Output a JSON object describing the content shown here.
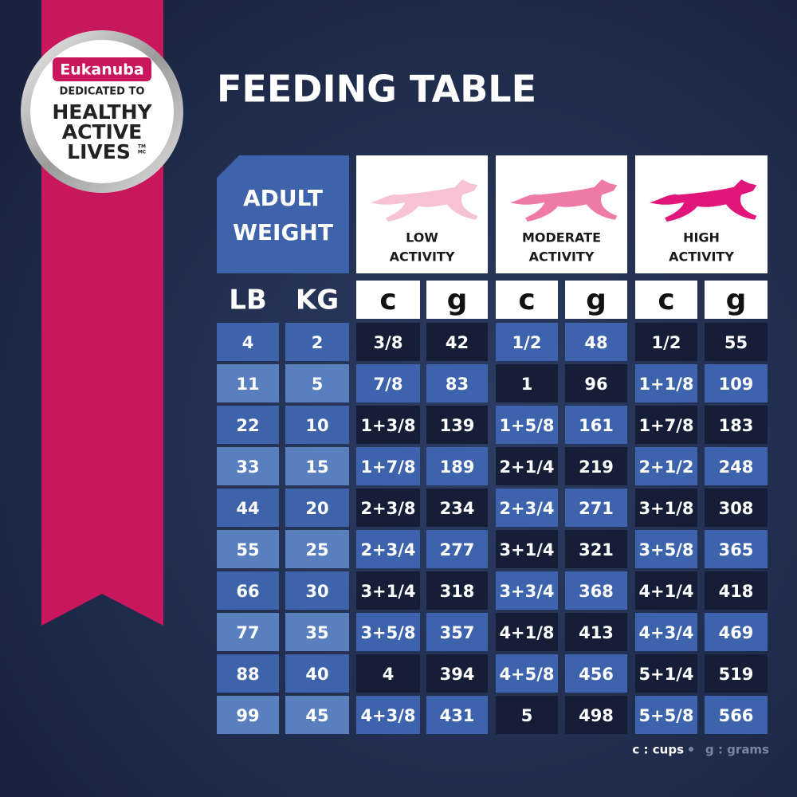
{
  "badge": {
    "brand": "Eukanuba",
    "line1": "DEDICATED TO",
    "line2": "HEALTHY",
    "line3": "ACTIVE",
    "line4": "LIVES",
    "tm": "TM",
    "mc": "MC"
  },
  "title": "FEEDING TABLE",
  "table": {
    "weight_header": [
      "ADULT",
      "WEIGHT"
    ],
    "activities": [
      [
        "LOW",
        "ACTIVITY"
      ],
      [
        "MODERATE",
        "ACTIVITY"
      ],
      [
        "HIGH",
        "ACTIVITY"
      ]
    ],
    "units": [
      "LB",
      "KG",
      "c",
      "g",
      "c",
      "g",
      "c",
      "g"
    ],
    "rows": [
      [
        "4",
        "2",
        "3/8",
        "42",
        "1/2",
        "48",
        "1/2",
        "55"
      ],
      [
        "11",
        "5",
        "7/8",
        "83",
        "1",
        "96",
        "1+1/8",
        "109"
      ],
      [
        "22",
        "10",
        "1+3/8",
        "139",
        "1+5/8",
        "161",
        "1+7/8",
        "183"
      ],
      [
        "33",
        "15",
        "1+7/8",
        "189",
        "2+1/4",
        "219",
        "2+1/2",
        "248"
      ],
      [
        "44",
        "20",
        "2+3/8",
        "234",
        "2+3/4",
        "271",
        "3+1/8",
        "308"
      ],
      [
        "55",
        "25",
        "2+3/4",
        "277",
        "3+1/4",
        "321",
        "3+5/8",
        "365"
      ],
      [
        "66",
        "30",
        "3+1/4",
        "318",
        "3+3/4",
        "368",
        "4+1/4",
        "418"
      ],
      [
        "77",
        "35",
        "3+5/8",
        "357",
        "4+1/8",
        "413",
        "4+3/4",
        "469"
      ],
      [
        "88",
        "40",
        "4",
        "394",
        "4+5/8",
        "456",
        "5+1/4",
        "519"
      ],
      [
        "99",
        "45",
        "4+3/8",
        "431",
        "5",
        "498",
        "5+5/8",
        "566"
      ]
    ]
  },
  "legend": {
    "cups": "c : cups",
    "grams": "g : grams"
  }
}
